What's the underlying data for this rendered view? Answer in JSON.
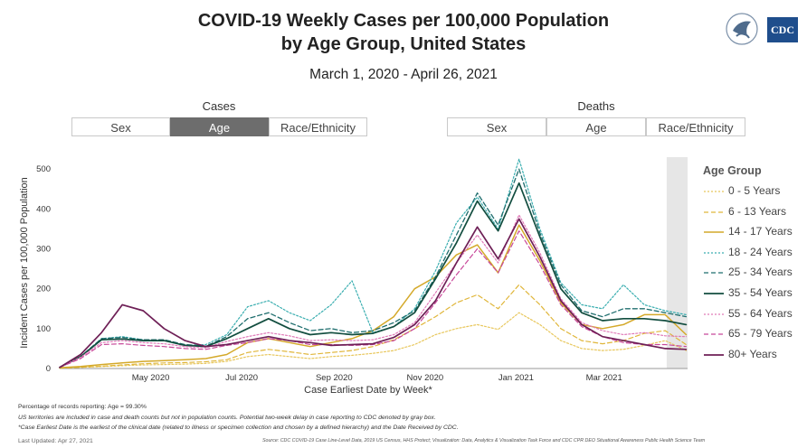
{
  "header": {
    "title_line1": "COVID-19 Weekly Cases per 100,000 Population",
    "title_line2": "by Age Group, United States",
    "date_range": "March 1, 2020 - April 26, 2021"
  },
  "logos": {
    "hhs": "HHS",
    "cdc": "CDC"
  },
  "cases_group": {
    "label": "Cases",
    "buttons": [
      {
        "label": "Sex",
        "active": false
      },
      {
        "label": "Age",
        "active": true
      },
      {
        "label": "Race/Ethnicity",
        "active": false
      }
    ]
  },
  "deaths_group": {
    "label": "Deaths",
    "buttons": [
      {
        "label": "Sex",
        "active": false
      },
      {
        "label": "Age",
        "active": false
      },
      {
        "label": "Race/Ethnicity",
        "active": false
      }
    ]
  },
  "legend": {
    "title": "Age Group"
  },
  "footnotes": {
    "reporting": "Percentage of records reporting: Age = 99.30%",
    "territories": "US territories are included in case and death counts but not in population counts. Potential two-week delay in case reporting to CDC denoted by gray box.",
    "earliest_date": "*Case Earliest Date is the earliest of the clinical date (related to illness or specimen collection and chosen by a defined hierarchy) and the Date Received by CDC.",
    "last_updated": "Last Updated: Apr 27, 2021",
    "source": "Source: CDC COVID-19 Case Line-Level Data, 2019 US Census, HHS Protect; Visualization: Data, Analytics & Visualization Task Force and CDC CPR DEO Situational Awareness Public Health Science Team"
  },
  "chart_data": {
    "type": "line",
    "xlabel": "Case Earliest Date by Week*",
    "ylabel": "Incident Cases per 100,000 Population",
    "ylim": [
      0,
      530
    ],
    "yticks": [
      0,
      100,
      200,
      300,
      400,
      500
    ],
    "xlim": [
      "2020-03-01",
      "2021-04-26"
    ],
    "xticks": [
      {
        "date": "2020-05-01",
        "label": "May 2020"
      },
      {
        "date": "2020-07-01",
        "label": "Jul 2020"
      },
      {
        "date": "2020-09-01",
        "label": "Sep 2020"
      },
      {
        "date": "2020-11-01",
        "label": "Nov 2020"
      },
      {
        "date": "2021-01-01",
        "label": "Jan 2021"
      },
      {
        "date": "2021-03-01",
        "label": "Mar 2021"
      }
    ],
    "grid": false,
    "legend_position": "right",
    "shaded_region": {
      "start": "2021-04-12",
      "end": "2021-04-26",
      "color": "#e6e6e6"
    },
    "x": [
      "2020-03-01",
      "2020-03-15",
      "2020-03-29",
      "2020-04-12",
      "2020-04-26",
      "2020-05-10",
      "2020-05-24",
      "2020-06-07",
      "2020-06-21",
      "2020-07-05",
      "2020-07-19",
      "2020-08-02",
      "2020-08-16",
      "2020-08-30",
      "2020-09-13",
      "2020-09-27",
      "2020-10-11",
      "2020-10-25",
      "2020-11-08",
      "2020-11-22",
      "2020-12-06",
      "2020-12-20",
      "2021-01-03",
      "2021-01-17",
      "2021-01-31",
      "2021-02-14",
      "2021-02-28",
      "2021-03-14",
      "2021-03-28",
      "2021-04-11",
      "2021-04-25"
    ],
    "series": [
      {
        "name": "0 - 5 Years",
        "color": "#e8c75c",
        "dash": "2,2",
        "width": 1.2,
        "values": [
          1,
          3,
          5,
          7,
          9,
          10,
          11,
          13,
          18,
          30,
          35,
          30,
          25,
          30,
          33,
          38,
          45,
          60,
          85,
          100,
          110,
          98,
          140,
          110,
          70,
          50,
          45,
          48,
          58,
          70,
          45
        ]
      },
      {
        "name": "6 - 13 Years",
        "color": "#e0b63a",
        "dash": "5,3",
        "width": 1.2,
        "values": [
          1,
          3,
          6,
          9,
          12,
          14,
          15,
          17,
          22,
          40,
          48,
          42,
          35,
          40,
          45,
          55,
          72,
          100,
          130,
          165,
          185,
          150,
          210,
          160,
          100,
          70,
          62,
          70,
          88,
          95,
          60
        ]
      },
      {
        "name": "14 - 17 Years",
        "color": "#d4a92a",
        "dash": "",
        "width": 1.5,
        "values": [
          2,
          5,
          10,
          14,
          18,
          20,
          22,
          25,
          35,
          65,
          75,
          65,
          55,
          65,
          75,
          95,
          130,
          200,
          230,
          285,
          310,
          240,
          360,
          270,
          165,
          110,
          100,
          110,
          135,
          135,
          85
        ]
      },
      {
        "name": "18 - 24 Years",
        "color": "#3aaeb0",
        "dash": "2,2",
        "width": 1.2,
        "values": [
          3,
          30,
          75,
          80,
          72,
          70,
          58,
          60,
          85,
          155,
          170,
          140,
          120,
          160,
          220,
          90,
          105,
          150,
          245,
          365,
          430,
          350,
          525,
          350,
          215,
          160,
          150,
          210,
          160,
          145,
          135
        ]
      },
      {
        "name": "25 - 34 Years",
        "color": "#1f6e6e",
        "dash": "5,3",
        "width": 1.3,
        "values": [
          3,
          30,
          75,
          78,
          72,
          72,
          60,
          56,
          80,
          125,
          140,
          115,
          95,
          100,
          90,
          95,
          115,
          145,
          230,
          335,
          440,
          360,
          500,
          340,
          210,
          145,
          130,
          150,
          150,
          140,
          130
        ]
      },
      {
        "name": "35 - 54 Years",
        "color": "#124d3f",
        "dash": "",
        "width": 1.7,
        "values": [
          3,
          30,
          72,
          74,
          70,
          70,
          58,
          55,
          75,
          100,
          125,
          100,
          85,
          90,
          85,
          88,
          105,
          140,
          225,
          315,
          420,
          345,
          465,
          330,
          200,
          140,
          120,
          125,
          125,
          120,
          110
        ]
      },
      {
        "name": "55 - 64 Years",
        "color": "#e07ab8",
        "dash": "2,2",
        "width": 1.2,
        "values": [
          3,
          28,
          65,
          70,
          65,
          62,
          55,
          52,
          68,
          80,
          90,
          82,
          70,
          72,
          70,
          72,
          85,
          115,
          190,
          265,
          335,
          265,
          385,
          290,
          175,
          115,
          95,
          85,
          90,
          82,
          80
        ]
      },
      {
        "name": "65 - 79 Years",
        "color": "#c8489a",
        "dash": "5,3",
        "width": 1.2,
        "values": [
          3,
          25,
          60,
          62,
          58,
          55,
          50,
          48,
          58,
          65,
          75,
          70,
          60,
          60,
          58,
          60,
          70,
          100,
          165,
          235,
          300,
          240,
          345,
          260,
          160,
          105,
          80,
          65,
          60,
          60,
          55
        ]
      },
      {
        "name": "80+ Years",
        "color": "#6e1f56",
        "dash": "",
        "width": 1.7,
        "values": [
          3,
          35,
          90,
          160,
          145,
          100,
          70,
          55,
          60,
          70,
          80,
          70,
          65,
          58,
          60,
          62,
          78,
          110,
          170,
          265,
          355,
          275,
          375,
          280,
          170,
          110,
          80,
          70,
          60,
          50,
          48
        ]
      }
    ]
  }
}
